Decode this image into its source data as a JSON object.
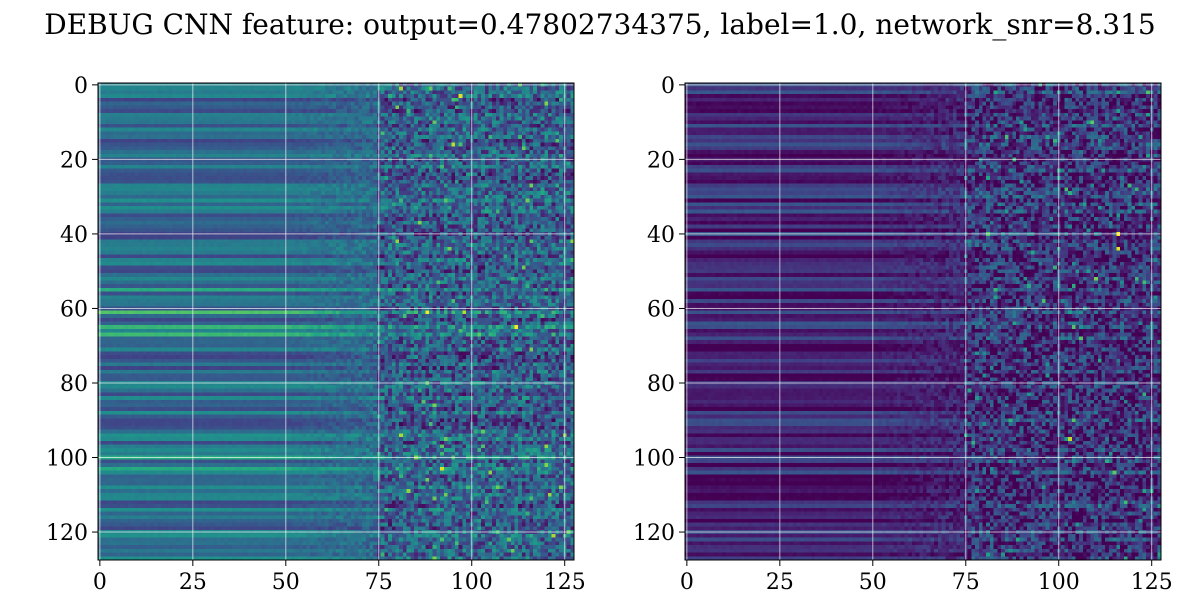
{
  "figure": {
    "title": "DEBUG CNN feature: output=0.47802734375, label=1.0, network_snr=8.315"
  },
  "chart_data": [
    {
      "type": "heatmap",
      "title": "",
      "xlabel": "",
      "ylabel": "",
      "rows": 128,
      "cols": 128,
      "xlim": [
        0,
        127
      ],
      "ylim": [
        127,
        0
      ],
      "xticks": [
        0,
        25,
        50,
        75,
        100,
        125
      ],
      "yticks": [
        0,
        20,
        40,
        60,
        80,
        100,
        120
      ],
      "colormap": "viridis",
      "grid": true,
      "value_scale": "normalized 0-1 colormap intensity",
      "column_zones": [
        {
          "cols": [
            0,
            50
          ],
          "pattern": "smooth horizontal bands",
          "typical_value": 0.35
        },
        {
          "cols": [
            50,
            75
          ],
          "pattern": "transition, bands fading into noise",
          "typical_value": 0.3
        },
        {
          "cols": [
            75,
            127
          ],
          "pattern": "noisy speckle",
          "typical_value": 0.3
        }
      ],
      "bright_rows": [
        55,
        61,
        65,
        67,
        88,
        100,
        103
      ],
      "hot_spots": [
        {
          "row": 61,
          "col": 88,
          "value": 1.0
        },
        {
          "row": 65,
          "col": 112,
          "value": 1.0
        },
        {
          "row": 103,
          "col": 92,
          "value": 0.95
        },
        {
          "row": 3,
          "col": 97,
          "value": 0.95
        },
        {
          "row": 16,
          "col": 95,
          "value": 0.9
        }
      ]
    },
    {
      "type": "heatmap",
      "title": "",
      "xlabel": "",
      "ylabel": "",
      "rows": 128,
      "cols": 128,
      "xlim": [
        0,
        127
      ],
      "ylim": [
        127,
        0
      ],
      "xticks": [
        0,
        25,
        50,
        75,
        100,
        125
      ],
      "yticks": [
        0,
        20,
        40,
        60,
        80,
        100,
        120
      ],
      "colormap": "viridis",
      "grid": true,
      "value_scale": "normalized 0-1 colormap intensity",
      "column_zones": [
        {
          "cols": [
            0,
            50
          ],
          "pattern": "faint horizontal bands",
          "typical_value": 0.12
        },
        {
          "cols": [
            50,
            75
          ],
          "pattern": "dark transition",
          "typical_value": 0.08
        },
        {
          "cols": [
            75,
            127
          ],
          "pattern": "noisy speckle",
          "typical_value": 0.15
        }
      ],
      "bright_rows": [],
      "hot_spots": [
        {
          "row": 40,
          "col": 116,
          "value": 1.0
        },
        {
          "row": 44,
          "col": 116,
          "value": 0.95
        },
        {
          "row": 95,
          "col": 103,
          "value": 0.9
        },
        {
          "row": 52,
          "col": 110,
          "value": 0.8
        },
        {
          "row": 10,
          "col": 109,
          "value": 0.75
        }
      ]
    }
  ]
}
